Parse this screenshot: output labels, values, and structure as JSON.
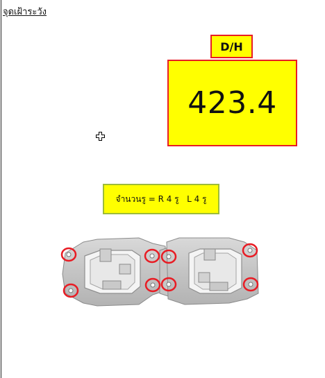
{
  "sheet": {
    "title": "จุดเฝ้าระวัง"
  },
  "measurement": {
    "label": "D/H",
    "value": "423.4"
  },
  "hole_count": {
    "text": "จำนวนรู = R 4 รู   L 4 รู"
  },
  "part_image": {
    "marker_color": "#e81c24",
    "marked_holes": 8
  },
  "colors": {
    "highlight": "#ffff00",
    "border_red": "#e81c24",
    "border_green": "#9dbb3a"
  }
}
